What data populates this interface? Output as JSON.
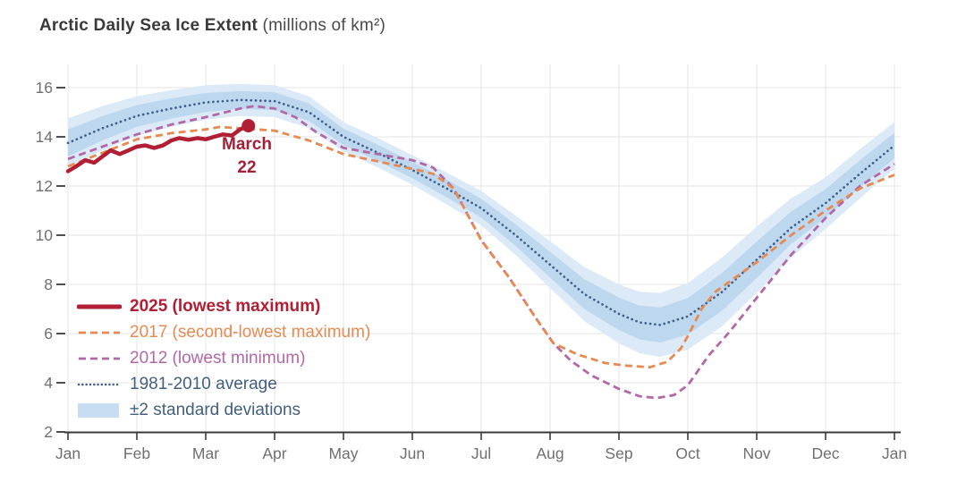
{
  "title": {
    "main": "Arctic Daily Sea Ice Extent",
    "suffix": " (millions of km²)"
  },
  "annotation": {
    "line1": "March",
    "line2": "22"
  },
  "colors": {
    "background": "#ffffff",
    "grid": "#e4e4e4",
    "axis": "#3b3b3b",
    "tick_label": "#6f6f6f",
    "annotation": "#a32037"
  },
  "chart_data": {
    "type": "line",
    "title": "Arctic Daily Sea Ice Extent (millions of km²)",
    "x_axis": {
      "unit": "month (0 = Jan 1, 12 = Dec 31)",
      "range": [
        0,
        12
      ],
      "tick_labels": [
        "Jan",
        "Feb",
        "Mar",
        "Apr",
        "May",
        "Jun",
        "Jul",
        "Aug",
        "Sep",
        "Oct",
        "Nov",
        "Dec",
        "Jan"
      ]
    },
    "y_axis": {
      "label": "millions of km²",
      "range": [
        2,
        16.6
      ],
      "ticks": [
        2,
        4,
        6,
        8,
        10,
        12,
        14,
        16
      ]
    },
    "grid": true,
    "legend_position": "inside-left",
    "band": {
      "id": "band",
      "name": "±2 standard deviations",
      "outer_color": "#dce9f6",
      "inner_color": "#bdd7ef",
      "legend_swatch_color": "#c9ddf2",
      "label_color": "#42607f",
      "inner_fraction": 0.55,
      "x": [
        0,
        0.5,
        1,
        1.5,
        2,
        2.5,
        3,
        3.5,
        4,
        4.5,
        5,
        5.5,
        6,
        6.5,
        7,
        7.5,
        8,
        8.3,
        8.6,
        9,
        9.5,
        10,
        10.5,
        11,
        11.5,
        12
      ],
      "center": [
        13.75,
        14.35,
        14.85,
        15.15,
        15.4,
        15.5,
        15.45,
        15.0,
        14.0,
        13.35,
        12.65,
        11.9,
        11.1,
        10.0,
        8.8,
        7.6,
        6.8,
        6.45,
        6.35,
        6.7,
        7.7,
        9.0,
        10.3,
        11.3,
        12.5,
        13.65
      ],
      "half_width_2sd": [
        1.0,
        0.9,
        0.8,
        0.75,
        0.7,
        0.65,
        0.65,
        0.65,
        0.6,
        0.6,
        0.6,
        0.65,
        0.7,
        0.8,
        0.95,
        1.1,
        1.2,
        1.25,
        1.3,
        1.35,
        1.4,
        1.35,
        1.2,
        1.05,
        1.0,
        0.95
      ]
    },
    "series": [
      {
        "id": "2025",
        "name": "2025 (lowest maximum)",
        "color": "#b01f33",
        "style": "solid",
        "legend_bold": true,
        "x": [
          0,
          0.12,
          0.25,
          0.38,
          0.5,
          0.62,
          0.75,
          0.88,
          1.0,
          1.12,
          1.25,
          1.38,
          1.5,
          1.62,
          1.75,
          1.88,
          2.0,
          2.12,
          2.25,
          2.38,
          2.5,
          2.62
        ],
        "values": [
          12.6,
          12.8,
          13.05,
          12.95,
          13.2,
          13.45,
          13.3,
          13.45,
          13.6,
          13.65,
          13.55,
          13.65,
          13.85,
          13.95,
          13.88,
          13.95,
          13.9,
          14.0,
          14.1,
          14.05,
          14.3,
          14.45
        ],
        "endpoint": {
          "x": 2.62,
          "value": 14.45,
          "label": "March 22"
        }
      },
      {
        "id": "2017",
        "name": "2017 (second-lowest maximum)",
        "color": "#e78a52",
        "style": "dashed",
        "x": [
          0,
          0.5,
          1,
          1.5,
          2,
          2.2,
          2.5,
          3,
          3.5,
          4,
          4.5,
          5,
          5.3,
          5.6,
          6,
          6.4,
          6.8,
          7.05,
          7.4,
          7.8,
          8.1,
          8.45,
          8.7,
          8.9,
          9.0,
          9.2,
          9.4,
          9.7,
          10,
          10.5,
          11,
          11.5,
          12
        ],
        "values": [
          12.8,
          13.35,
          13.9,
          14.15,
          14.3,
          14.4,
          14.35,
          14.25,
          13.85,
          13.3,
          13.0,
          12.7,
          12.5,
          11.9,
          9.8,
          8.3,
          6.6,
          5.6,
          5.15,
          4.8,
          4.7,
          4.63,
          4.85,
          5.4,
          5.9,
          7.0,
          7.7,
          8.3,
          8.9,
          10.0,
          11.0,
          11.9,
          12.45
        ]
      },
      {
        "id": "2012",
        "name": "2012 (lowest minimum)",
        "color": "#b268a6",
        "style": "dashed",
        "x": [
          0,
          0.5,
          1,
          1.5,
          2,
          2.5,
          2.7,
          3,
          3.3,
          3.6,
          4,
          4.5,
          5,
          5.3,
          5.6,
          6,
          6.4,
          6.8,
          7.05,
          7.3,
          7.6,
          8,
          8.3,
          8.55,
          8.8,
          9,
          9.3,
          9.6,
          10,
          10.5,
          11,
          11.5,
          12
        ],
        "values": [
          13.1,
          13.6,
          14.1,
          14.5,
          14.8,
          15.15,
          15.25,
          15.15,
          14.8,
          14.2,
          13.55,
          13.3,
          13.05,
          12.75,
          11.9,
          9.8,
          8.3,
          6.6,
          5.6,
          4.9,
          4.3,
          3.75,
          3.45,
          3.38,
          3.5,
          3.9,
          5.1,
          6.05,
          7.45,
          9.2,
          10.7,
          12.0,
          12.9
        ]
      },
      {
        "id": "average",
        "name": "1981-2010 average",
        "color": "#40608a",
        "style": "dotted",
        "label_color": "#42607f",
        "x": [
          0,
          0.5,
          1,
          1.5,
          2,
          2.5,
          3,
          3.5,
          4,
          4.5,
          5,
          5.5,
          6,
          6.5,
          7,
          7.5,
          8,
          8.3,
          8.6,
          9,
          9.5,
          10,
          10.5,
          11,
          11.5,
          12
        ],
        "values": [
          13.75,
          14.35,
          14.85,
          15.15,
          15.4,
          15.5,
          15.45,
          15.0,
          14.0,
          13.35,
          12.65,
          11.9,
          11.1,
          10.0,
          8.8,
          7.6,
          6.8,
          6.45,
          6.35,
          6.7,
          7.7,
          9.0,
          10.3,
          11.3,
          12.5,
          13.65
        ]
      }
    ],
    "legend_order": [
      "2025",
      "2017",
      "2012",
      "average",
      "band"
    ]
  }
}
